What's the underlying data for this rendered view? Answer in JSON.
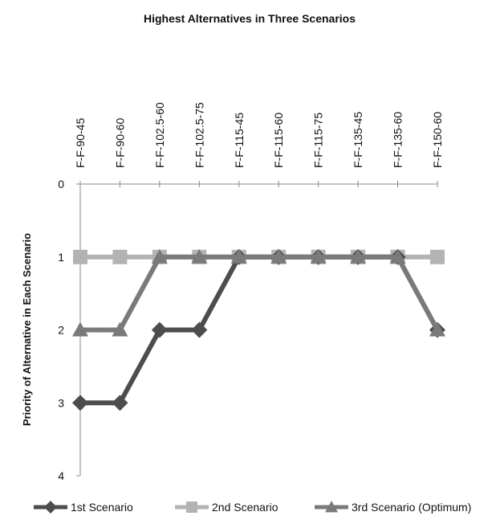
{
  "chart_data": {
    "type": "line",
    "title": "Highest Alternatives in Three Scenarios",
    "xlabel": "",
    "ylabel": "Priority of Alternative in Each Scenario",
    "x_axis_position": "top",
    "y_axis_reversed": true,
    "ylim": [
      0,
      4
    ],
    "yticks": [
      "0",
      "1",
      "2",
      "3",
      "4"
    ],
    "grid": false,
    "legend_position": "bottom",
    "categories": [
      "F-F-90-45",
      "F-F-90-60",
      "F-F-102.5-60",
      "F-F-102.5-75",
      "F-F-115-45",
      "F-F-115-60",
      "F-F-115-75",
      "F-F-135-45",
      "F-F-135-60",
      "F-F-150-60"
    ],
    "series": [
      {
        "name": "1st Scenario",
        "marker": "diamond",
        "color": "#4d4d4d",
        "values": [
          3,
          3,
          2,
          2,
          1,
          1,
          1,
          1,
          1,
          2
        ]
      },
      {
        "name": "2nd Scenario",
        "marker": "square",
        "color": "#b3b3b3",
        "values": [
          1,
          1,
          1,
          1,
          1,
          1,
          1,
          1,
          1,
          1
        ]
      },
      {
        "name": "3rd Scenario (Optimum)",
        "marker": "triangle",
        "color": "#7a7a7a",
        "values": [
          2,
          2,
          1,
          1,
          1,
          1,
          1,
          1,
          1,
          2
        ]
      }
    ]
  }
}
